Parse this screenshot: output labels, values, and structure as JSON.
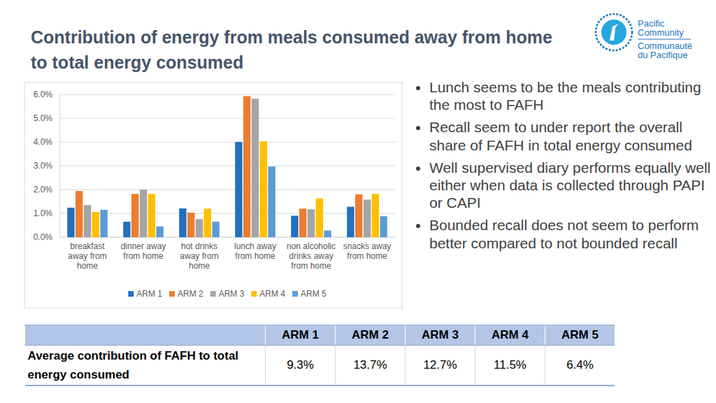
{
  "title": "Contribution of energy from meals consumed away from home to total energy consumed",
  "logo": [
    "Pacific",
    "Community",
    "Communauté",
    "du Pacifique"
  ],
  "bullets": [
    "Lunch seems to be the meals contributing the most to FAFH",
    "Recall seem to under report the overall share of FAFH in total energy consumed",
    "Well supervised diary performs equally well either when data is collected through PAPI or CAPI",
    "Bounded recall does not seem to perform better compared to not bounded recall"
  ],
  "chart_data": {
    "type": "bar",
    "categories": [
      "breakfast away from home",
      "dinner away from home",
      "hot drinks away from home",
      "lunch away from home",
      "non alcoholic drinks away from home",
      "snacks away from home"
    ],
    "series": [
      {
        "name": "ARM 1",
        "color": "#2270c0",
        "values": [
          1.24,
          0.65,
          1.21,
          4.0,
          0.9,
          1.28
        ]
      },
      {
        "name": "ARM 2",
        "color": "#ed7d31",
        "values": [
          1.94,
          1.82,
          1.03,
          5.93,
          1.2,
          1.8
        ]
      },
      {
        "name": "ARM 3",
        "color": "#a5a5a5",
        "values": [
          1.35,
          2.0,
          0.76,
          5.82,
          1.17,
          1.58
        ]
      },
      {
        "name": "ARM 4",
        "color": "#ffc000",
        "values": [
          1.06,
          1.82,
          1.2,
          4.03,
          1.63,
          1.82
        ]
      },
      {
        "name": "ARM 5",
        "color": "#5b9bd5",
        "values": [
          1.15,
          0.45,
          0.65,
          2.97,
          0.28,
          0.88
        ]
      }
    ],
    "ylim": [
      0,
      6
    ],
    "yticks": [
      {
        "value": 0,
        "label": "0.0%"
      },
      {
        "value": 1,
        "label": "1.0%"
      },
      {
        "value": 2,
        "label": "2.0%"
      },
      {
        "value": 3,
        "label": "3.0%"
      },
      {
        "value": 4,
        "label": "4.0%"
      },
      {
        "value": 5,
        "label": "5.0%"
      },
      {
        "value": 6,
        "label": "6.0%"
      }
    ],
    "grid": true,
    "legend": "bottom"
  },
  "table": {
    "header": [
      "ARM 1",
      "ARM 2",
      "ARM 3",
      "ARM 4",
      "ARM 5"
    ],
    "rows": [
      [
        "Average contribution of FAFH to total energy consumed",
        "9.3%",
        "13.7%",
        "12.7%",
        "11.5%",
        "6.4%"
      ]
    ]
  }
}
